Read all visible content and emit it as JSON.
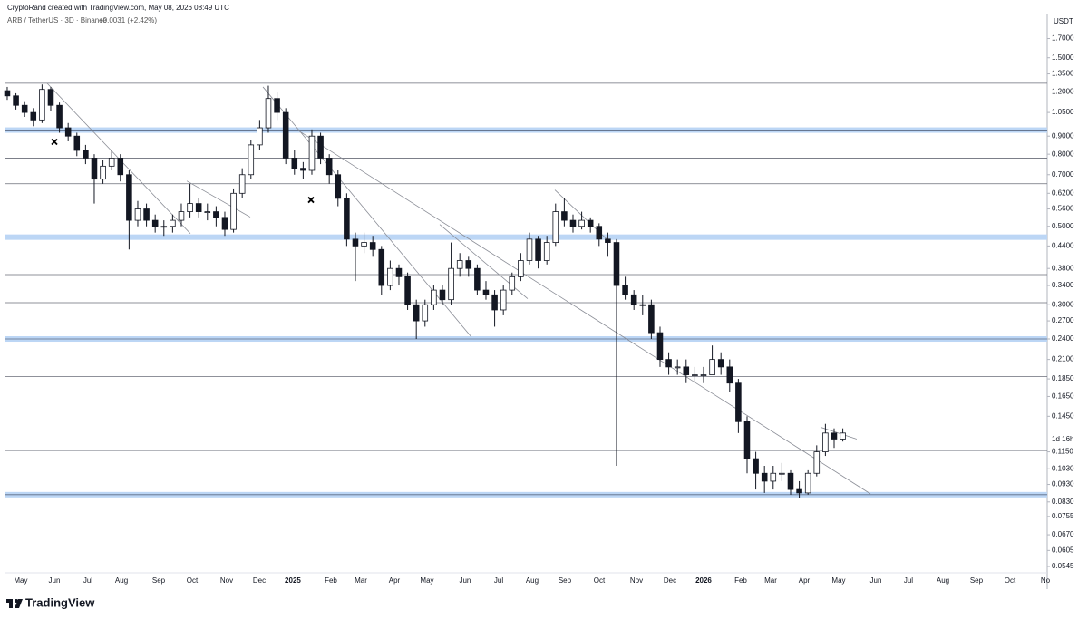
{
  "chart_data": {
    "type": "candlestick",
    "header": "CryptoRand created with TradingView.com, May 08, 2026 08:49 UTC",
    "symbol": "ARB / TetherUS · 3D · Binance",
    "change": "+0.0031 (+2.42%)",
    "currency": "USDT",
    "countdown": "1d 16h",
    "footer": "TradingView",
    "log_scale": true,
    "up_color": "#ffffff",
    "down_color": "#131722",
    "edge_color": "#131722",
    "ylim": [
      0.0523,
      2.0
    ],
    "yticks": [
      {
        "value": 1.7,
        "label": "1.7000"
      },
      {
        "value": 1.5,
        "label": "1.5000"
      },
      {
        "value": 1.35,
        "label": "1.3500"
      },
      {
        "value": 1.2,
        "label": "1.2000"
      },
      {
        "value": 1.05,
        "label": "1.0500"
      },
      {
        "value": 0.9,
        "label": "0.9000"
      },
      {
        "value": 0.8,
        "label": "0.8000"
      },
      {
        "value": 0.7,
        "label": "0.7000"
      },
      {
        "value": 0.62,
        "label": "0.6200"
      },
      {
        "value": 0.56,
        "label": "0.5600"
      },
      {
        "value": 0.5,
        "label": "0.5000"
      },
      {
        "value": 0.44,
        "label": "0.4400"
      },
      {
        "value": 0.38,
        "label": "0.3800"
      },
      {
        "value": 0.34,
        "label": "0.3400"
      },
      {
        "value": 0.3,
        "label": "0.3000"
      },
      {
        "value": 0.27,
        "label": "0.2700"
      },
      {
        "value": 0.24,
        "label": "0.2400"
      },
      {
        "value": 0.21,
        "label": "0.2100"
      },
      {
        "value": 0.185,
        "label": "0.1850"
      },
      {
        "value": 0.165,
        "label": "0.1650"
      },
      {
        "value": 0.145,
        "label": "0.1450"
      },
      {
        "value": 0.115,
        "label": "0.1150"
      },
      {
        "value": 0.103,
        "label": "0.1030"
      },
      {
        "value": 0.093,
        "label": "0.0930"
      },
      {
        "value": 0.083,
        "label": "0.0830"
      },
      {
        "value": 0.0755,
        "label": "0.0755"
      },
      {
        "value": 0.067,
        "label": "0.0670"
      },
      {
        "value": 0.0605,
        "label": "0.0605"
      },
      {
        "value": 0.0545,
        "label": "0.0545"
      }
    ],
    "xlim": [
      -0.31,
      119.48
    ],
    "xticks": [
      {
        "value": 1.56,
        "label": "May"
      },
      {
        "value": 5.42,
        "label": "Jun"
      },
      {
        "value": 9.27,
        "label": "Jul"
      },
      {
        "value": 13.13,
        "label": "Aug"
      },
      {
        "value": 17.4,
        "label": "Sep"
      },
      {
        "value": 21.25,
        "label": "Oct"
      },
      {
        "value": 25.21,
        "label": "Nov"
      },
      {
        "value": 28.96,
        "label": "Dec"
      },
      {
        "value": 32.81,
        "label": "2025"
      },
      {
        "value": 37.19,
        "label": "Feb"
      },
      {
        "value": 40.63,
        "label": "Mar"
      },
      {
        "value": 44.48,
        "label": "Apr"
      },
      {
        "value": 48.23,
        "label": "May"
      },
      {
        "value": 52.6,
        "label": "Jun"
      },
      {
        "value": 56.46,
        "label": "Jul"
      },
      {
        "value": 60.31,
        "label": "Aug"
      },
      {
        "value": 64.06,
        "label": "Sep"
      },
      {
        "value": 68.02,
        "label": "Oct"
      },
      {
        "value": 72.29,
        "label": "Nov"
      },
      {
        "value": 76.15,
        "label": "Dec"
      },
      {
        "value": 80,
        "label": "2026"
      },
      {
        "value": 84.27,
        "label": "Feb"
      },
      {
        "value": 87.71,
        "label": "Mar"
      },
      {
        "value": 91.56,
        "label": "Apr"
      },
      {
        "value": 95.52,
        "label": "May"
      },
      {
        "value": 99.79,
        "label": "Jun"
      },
      {
        "value": 103.54,
        "label": "Jul"
      },
      {
        "value": 107.5,
        "label": "Aug"
      },
      {
        "value": 111.35,
        "label": "Sep"
      },
      {
        "value": 115.21,
        "label": "Oct"
      },
      {
        "value": 119.27,
        "label": "No"
      }
    ],
    "levels": [
      1.27,
      0.78,
      0.66,
      0.365,
      0.304,
      0.188,
      0.116
    ],
    "zones": [
      0.936,
      0.466,
      0.24,
      0.087
    ],
    "trendlines": [
      [
        4.58,
        1.27,
        21.04,
        0.477
      ],
      [
        29.38,
        1.24,
        53.33,
        0.243
      ],
      [
        33.54,
        0.93,
        99.17,
        0.0875
      ],
      [
        62.92,
        0.634,
        68.96,
        0.458
      ],
      [
        49.69,
        0.506,
        59.79,
        0.312
      ],
      [
        20.63,
        0.672,
        27.92,
        0.531
      ],
      [
        93.44,
        0.135,
        97.6,
        0.125
      ]
    ],
    "markers": [
      [
        5.42,
        0.867
      ],
      [
        34.9,
        0.594
      ]
    ],
    "ohlc": [
      [
        1.21,
        1.24,
        1.14,
        1.17
      ],
      [
        1.17,
        1.19,
        1.07,
        1.1
      ],
      [
        1.1,
        1.13,
        1.02,
        1.05
      ],
      [
        1.05,
        1.08,
        0.96,
        1.0
      ],
      [
        1.0,
        1.26,
        0.98,
        1.22
      ],
      [
        1.22,
        1.24,
        1.06,
        1.1
      ],
      [
        1.1,
        1.12,
        0.92,
        0.95
      ],
      [
        0.95,
        0.98,
        0.87,
        0.9
      ],
      [
        0.9,
        0.92,
        0.79,
        0.82
      ],
      [
        0.82,
        0.85,
        0.75,
        0.78
      ],
      [
        0.78,
        0.8,
        0.58,
        0.68
      ],
      [
        0.68,
        0.77,
        0.66,
        0.74
      ],
      [
        0.74,
        0.82,
        0.72,
        0.78
      ],
      [
        0.78,
        0.8,
        0.67,
        0.7
      ],
      [
        0.7,
        0.72,
        0.43,
        0.52
      ],
      [
        0.52,
        0.59,
        0.5,
        0.56
      ],
      [
        0.56,
        0.58,
        0.5,
        0.52
      ],
      [
        0.52,
        0.54,
        0.48,
        0.5
      ],
      [
        0.5,
        0.52,
        0.47,
        0.5
      ],
      [
        0.5,
        0.54,
        0.48,
        0.52
      ],
      [
        0.52,
        0.58,
        0.5,
        0.55
      ],
      [
        0.55,
        0.66,
        0.53,
        0.58
      ],
      [
        0.58,
        0.6,
        0.53,
        0.55
      ],
      [
        0.55,
        0.58,
        0.52,
        0.55
      ],
      [
        0.55,
        0.57,
        0.5,
        0.53
      ],
      [
        0.53,
        0.55,
        0.47,
        0.49
      ],
      [
        0.49,
        0.64,
        0.48,
        0.62
      ],
      [
        0.62,
        0.73,
        0.6,
        0.7
      ],
      [
        0.7,
        0.88,
        0.68,
        0.85
      ],
      [
        0.85,
        1.0,
        0.82,
        0.95
      ],
      [
        0.95,
        1.25,
        0.92,
        1.15
      ],
      [
        1.15,
        1.2,
        1.0,
        1.05
      ],
      [
        1.05,
        1.08,
        0.75,
        0.78
      ],
      [
        0.78,
        0.82,
        0.7,
        0.73
      ],
      [
        0.73,
        0.76,
        0.68,
        0.72
      ],
      [
        0.72,
        0.94,
        0.7,
        0.9
      ],
      [
        0.9,
        0.92,
        0.75,
        0.78
      ],
      [
        0.78,
        0.8,
        0.66,
        0.7
      ],
      [
        0.7,
        0.72,
        0.57,
        0.6
      ],
      [
        0.6,
        0.62,
        0.44,
        0.46
      ],
      [
        0.46,
        0.48,
        0.35,
        0.44
      ],
      [
        0.44,
        0.48,
        0.42,
        0.45
      ],
      [
        0.45,
        0.47,
        0.41,
        0.43
      ],
      [
        0.43,
        0.44,
        0.32,
        0.34
      ],
      [
        0.34,
        0.4,
        0.33,
        0.38
      ],
      [
        0.38,
        0.39,
        0.34,
        0.36
      ],
      [
        0.36,
        0.37,
        0.29,
        0.3
      ],
      [
        0.3,
        0.31,
        0.24,
        0.27
      ],
      [
        0.27,
        0.31,
        0.26,
        0.3
      ],
      [
        0.3,
        0.34,
        0.29,
        0.33
      ],
      [
        0.33,
        0.34,
        0.3,
        0.31
      ],
      [
        0.31,
        0.45,
        0.3,
        0.38
      ],
      [
        0.38,
        0.42,
        0.36,
        0.4
      ],
      [
        0.4,
        0.41,
        0.36,
        0.38
      ],
      [
        0.38,
        0.39,
        0.32,
        0.33
      ],
      [
        0.33,
        0.35,
        0.31,
        0.32
      ],
      [
        0.32,
        0.33,
        0.26,
        0.29
      ],
      [
        0.29,
        0.34,
        0.28,
        0.33
      ],
      [
        0.33,
        0.37,
        0.32,
        0.36
      ],
      [
        0.36,
        0.42,
        0.35,
        0.4
      ],
      [
        0.4,
        0.48,
        0.39,
        0.46
      ],
      [
        0.46,
        0.47,
        0.38,
        0.4
      ],
      [
        0.4,
        0.47,
        0.39,
        0.45
      ],
      [
        0.45,
        0.58,
        0.44,
        0.55
      ],
      [
        0.55,
        0.6,
        0.5,
        0.52
      ],
      [
        0.52,
        0.54,
        0.48,
        0.5
      ],
      [
        0.5,
        0.55,
        0.49,
        0.52
      ],
      [
        0.52,
        0.53,
        0.48,
        0.5
      ],
      [
        0.5,
        0.51,
        0.44,
        0.46
      ],
      [
        0.46,
        0.48,
        0.41,
        0.45
      ],
      [
        0.45,
        0.46,
        0.105,
        0.34
      ],
      [
        0.34,
        0.36,
        0.31,
        0.32
      ],
      [
        0.32,
        0.33,
        0.29,
        0.3
      ],
      [
        0.3,
        0.32,
        0.28,
        0.3
      ],
      [
        0.3,
        0.31,
        0.24,
        0.25
      ],
      [
        0.25,
        0.26,
        0.2,
        0.21
      ],
      [
        0.21,
        0.22,
        0.19,
        0.2
      ],
      [
        0.2,
        0.21,
        0.19,
        0.2
      ],
      [
        0.2,
        0.21,
        0.18,
        0.19
      ],
      [
        0.19,
        0.2,
        0.18,
        0.19
      ],
      [
        0.19,
        0.2,
        0.18,
        0.19
      ],
      [
        0.19,
        0.23,
        0.19,
        0.21
      ],
      [
        0.21,
        0.22,
        0.19,
        0.2
      ],
      [
        0.2,
        0.21,
        0.17,
        0.18
      ],
      [
        0.18,
        0.185,
        0.13,
        0.14
      ],
      [
        0.14,
        0.145,
        0.1,
        0.11
      ],
      [
        0.11,
        0.115,
        0.09,
        0.1
      ],
      [
        0.1,
        0.105,
        0.088,
        0.095
      ],
      [
        0.095,
        0.105,
        0.09,
        0.1
      ],
      [
        0.1,
        0.107,
        0.095,
        0.1
      ],
      [
        0.1,
        0.102,
        0.087,
        0.09
      ],
      [
        0.09,
        0.095,
        0.085,
        0.088
      ],
      [
        0.088,
        0.102,
        0.087,
        0.1
      ],
      [
        0.1,
        0.12,
        0.098,
        0.115
      ],
      [
        0.115,
        0.138,
        0.112,
        0.13
      ],
      [
        0.13,
        0.134,
        0.118,
        0.125
      ],
      [
        0.125,
        0.134,
        0.123,
        0.13
      ]
    ]
  }
}
